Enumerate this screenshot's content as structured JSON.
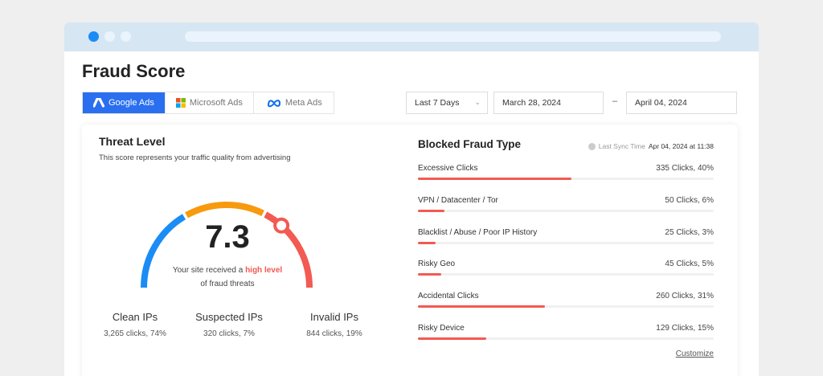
{
  "page": {
    "title": "Fraud Score"
  },
  "tabs": [
    {
      "label": "Google Ads",
      "icon": "google-ads-icon",
      "active": true
    },
    {
      "label": "Microsoft Ads",
      "icon": "microsoft-icon",
      "active": false
    },
    {
      "label": "Meta Ads",
      "icon": "meta-icon",
      "active": false
    }
  ],
  "filters": {
    "range": "Last 7 Days",
    "start": "March 28, 2024",
    "separator": "–",
    "end": "April 04, 2024"
  },
  "threat": {
    "title": "Threat Level",
    "subtitle": "This score represents your traffic quality from advertising",
    "score": "7.3",
    "score_value": 7.3,
    "score_max": 10,
    "message_pre": "Your site received a ",
    "message_high": "high level",
    "message_post": "of fraud threats",
    "colors": {
      "low": "#1a8cf5",
      "medium": "#f79a0e",
      "high": "#f25a52"
    },
    "stats": [
      {
        "label": "Clean IPs",
        "value": "3,265 clicks, 74%"
      },
      {
        "label": "Suspected IPs",
        "value": "320 clicks, 7%"
      },
      {
        "label": "Invalid IPs",
        "value": "844 clicks, 19%"
      }
    ]
  },
  "blocked": {
    "title": "Blocked Fraud Type",
    "sync_label": "Last Sync Time",
    "sync_value": "Apr 04, 2024 at 11:38",
    "items": [
      {
        "name": "Excessive Clicks",
        "value": "335 Clicks, 40%",
        "fill": 0.52
      },
      {
        "name": "VPN / Datacenter / Tor",
        "value": "50 Clicks, 6%",
        "fill": 0.09
      },
      {
        "name": "Blacklist / Abuse / Poor IP History",
        "value": "25 Clicks, 3%",
        "fill": 0.06
      },
      {
        "name": "Risky Geo",
        "value": "45 Clicks, 5%",
        "fill": 0.08
      },
      {
        "name": "Accidental Clicks",
        "value": "260 Clicks, 31%",
        "fill": 0.43
      },
      {
        "name": "Risky Device",
        "value": "129 Clicks, 15%",
        "fill": 0.23
      }
    ],
    "customize": "Customize"
  }
}
